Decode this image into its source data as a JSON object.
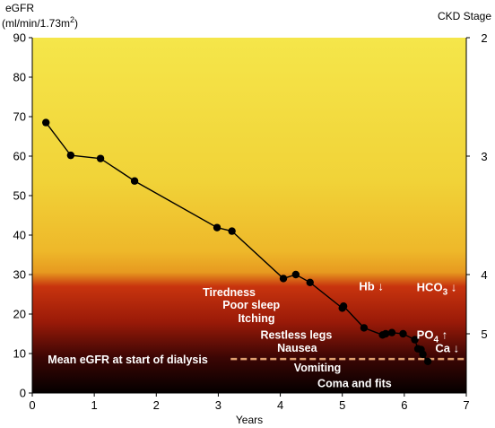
{
  "chart_data": {
    "type": "line",
    "y_axis_title_line1": "eGFR",
    "y_axis_title_line2": "(ml/min/1.73m",
    "y_axis_title_sup": "2",
    "y_axis_title_end": ")",
    "right_axis_title": "CKD Stage",
    "xlabel": "Years",
    "xlim": [
      0,
      7
    ],
    "ylim": [
      0,
      90
    ],
    "x_ticks": [
      "0",
      "1",
      "2",
      "3",
      "4",
      "5",
      "6",
      "7"
    ],
    "y_ticks": [
      "0",
      "10",
      "20",
      "30",
      "40",
      "50",
      "60",
      "70",
      "80",
      "90"
    ],
    "stage_ticks": [
      {
        "label": "2",
        "y": 90
      },
      {
        "label": "3",
        "y": 60
      },
      {
        "label": "4",
        "y": 30
      },
      {
        "label": "5",
        "y": 15
      }
    ],
    "series": [
      {
        "x": [
          0.22,
          0.62,
          1.1,
          1.65,
          2.98,
          3.22,
          4.05,
          4.25,
          4.48,
          5.0,
          5.02,
          5.35,
          5.65,
          5.7,
          5.8,
          5.98,
          6.17,
          6.22,
          6.27,
          6.3,
          6.38
        ],
        "y": [
          68.5,
          60.2,
          59.4,
          53.7,
          41.9,
          41.0,
          29.0,
          30.0,
          28.0,
          21.5,
          22.0,
          16.5,
          14.7,
          15.0,
          15.3,
          15.0,
          13.5,
          11.2,
          11.0,
          9.8,
          8.0
        ]
      }
    ],
    "reference_line": {
      "y": 8.6,
      "x_start": 3.2,
      "x_end": 7.0,
      "label": "Mean eGFR at start of dialysis",
      "color": "#e0a070"
    },
    "annotations": [
      {
        "text": "Tiredness",
        "x": 2.75,
        "y": 24.6
      },
      {
        "text": "Poor sleep",
        "x": 3.07,
        "y": 21.4
      },
      {
        "text": "Itching",
        "x": 3.32,
        "y": 17.9
      },
      {
        "text": "Restless legs",
        "x": 3.68,
        "y": 13.8
      },
      {
        "text": "Nausea",
        "x": 3.95,
        "y": 10.4
      },
      {
        "text": "Vomiting",
        "x": 4.22,
        "y": 5.5
      },
      {
        "text": "Coma and fits",
        "x": 4.6,
        "y": 1.5
      }
    ],
    "lab_markers": [
      {
        "name": "Hb",
        "arrow": "↓",
        "x": 5.27,
        "y": 26.0
      },
      {
        "name": "HCO",
        "sub": "3",
        "arrow": "↓",
        "x": 6.2,
        "y": 25.8
      },
      {
        "name": "PO",
        "sub": "4",
        "arrow": "↑",
        "x": 6.2,
        "y": 13.8
      },
      {
        "name": "Ca",
        "arrow": "↓",
        "x": 6.5,
        "y": 10.3
      }
    ],
    "colors": {
      "line": "#000000",
      "marker": "#000000",
      "gradient_top": "#f5e64a",
      "gradient_mid": "#efbf2a",
      "gradient_red": "#c03010",
      "gradient_dark": "#4a0a04",
      "gradient_bottom": "#050000"
    }
  }
}
